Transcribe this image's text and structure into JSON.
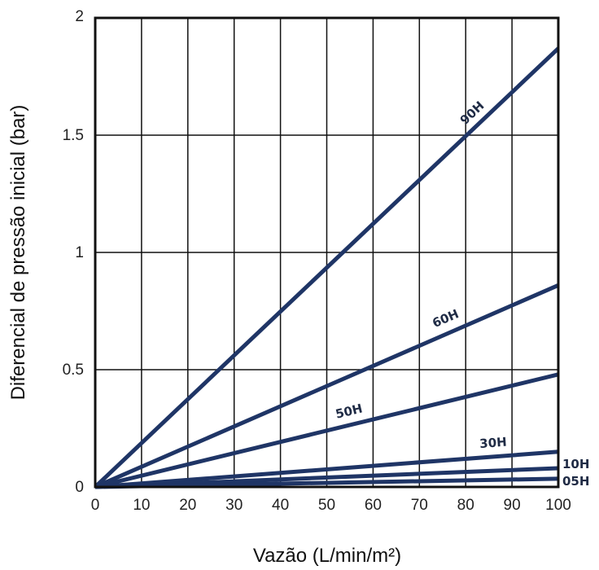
{
  "chart_data": {
    "type": "line",
    "title": "",
    "xlabel": "Vazão (L/min/m²)",
    "ylabel": "Diferencial de pressão inicial (bar)",
    "xlim": [
      0,
      100
    ],
    "ylim": [
      0,
      2
    ],
    "xticks": [
      0,
      10,
      20,
      30,
      40,
      50,
      60,
      70,
      80,
      90,
      100
    ],
    "yticks": [
      {
        "value": 0,
        "label": "0"
      },
      {
        "value": 0.5,
        "label": "0.5"
      },
      {
        "value": 1,
        "label": "1"
      },
      {
        "value": 1.5,
        "label": "1.5"
      },
      {
        "value": 2,
        "label": "2"
      }
    ],
    "grid": true,
    "legend": "none",
    "line_color": "#1f3566",
    "series": [
      {
        "name": "90H",
        "x": [
          0,
          100
        ],
        "y": [
          0,
          1.87
        ]
      },
      {
        "name": "60H",
        "x": [
          0,
          100
        ],
        "y": [
          0,
          0.86
        ]
      },
      {
        "name": "50H",
        "x": [
          0,
          100
        ],
        "y": [
          0,
          0.48
        ]
      },
      {
        "name": "30H",
        "x": [
          0,
          100
        ],
        "y": [
          0,
          0.15
        ]
      },
      {
        "name": "10H",
        "x": [
          0,
          100
        ],
        "y": [
          0,
          0.08
        ]
      },
      {
        "name": "05H",
        "x": [
          0,
          100
        ],
        "y": [
          0,
          0.035
        ]
      }
    ]
  }
}
